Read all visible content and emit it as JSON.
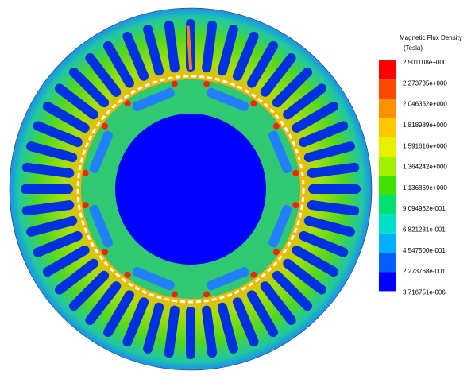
{
  "legend": {
    "title": "Magnetic Flux Density",
    "unit": "(Tesla)",
    "labels": [
      "2.501108e+000",
      "2.273735e+000",
      "2.046362e+000",
      "1.818989e+000",
      "1.591616e+000",
      "1.364242e+000",
      "1.136869e+000",
      "9.094962e-001",
      "6.821231e-001",
      "4.547500e-001",
      "2.273768e-001",
      "3.716751e-006"
    ]
  }
}
